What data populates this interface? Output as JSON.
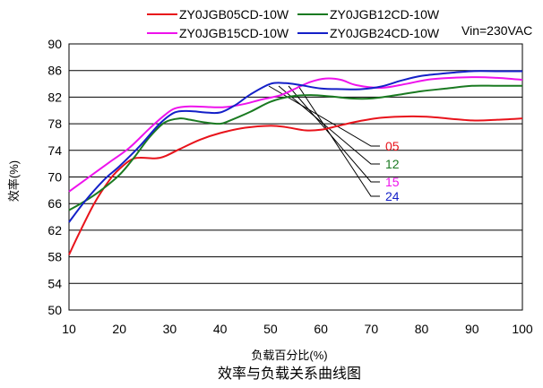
{
  "chart_data": {
    "type": "line",
    "caption": "效率与负载关系曲线图",
    "xlabel": "负载百分比(%)",
    "ylabel": "效率(%)",
    "xlim": [
      10,
      100
    ],
    "ylim": [
      50,
      90
    ],
    "xticks": [
      10,
      20,
      30,
      40,
      50,
      60,
      70,
      80,
      90,
      100
    ],
    "yticks": [
      50,
      54,
      58,
      62,
      66,
      70,
      74,
      78,
      82,
      86,
      90
    ],
    "grid": "horizontal",
    "legend_position": "top",
    "annotation": "Vin=230VAC",
    "series": [
      {
        "name": "ZY0JGB05CD-10W",
        "tag": "05",
        "color": "#e8131b",
        "x": [
          10,
          12,
          15,
          18,
          20,
          23,
          27,
          29,
          32,
          36,
          40,
          45,
          50,
          53,
          57,
          60,
          63,
          67,
          72,
          78,
          82,
          90,
          95,
          100
        ],
        "y": [
          58.3,
          61.5,
          66.0,
          69.5,
          71.2,
          72.8,
          72.8,
          73.1,
          74.2,
          75.6,
          76.6,
          77.4,
          77.7,
          77.5,
          77.0,
          77.1,
          77.6,
          78.3,
          78.9,
          79.1,
          79.0,
          78.5,
          78.6,
          78.8
        ]
      },
      {
        "name": "ZY0JGB12CD-10W",
        "tag": "12",
        "color": "#1a7a21",
        "x": [
          10,
          13,
          16,
          20,
          23,
          26,
          29,
          32,
          34,
          37,
          40,
          42,
          46,
          50,
          54,
          58,
          62,
          66,
          70,
          75,
          80,
          85,
          90,
          95,
          100
        ],
        "y": [
          65.0,
          66.3,
          67.8,
          70.3,
          73.0,
          76.0,
          78.2,
          78.8,
          78.6,
          78.2,
          78.0,
          78.5,
          79.8,
          81.3,
          82.1,
          82.3,
          82.1,
          81.8,
          81.8,
          82.3,
          82.9,
          83.3,
          83.7,
          83.7,
          83.7
        ]
      },
      {
        "name": "ZY0JGB15CD-10W",
        "tag": "15",
        "color": "#ee12ec",
        "x": [
          10,
          14,
          18,
          22,
          26,
          29,
          31,
          34,
          38,
          41,
          45,
          48,
          52,
          55,
          58,
          61,
          64,
          67,
          72,
          77,
          82,
          90,
          95,
          100
        ],
        "y": [
          67.8,
          70.0,
          72.2,
          74.4,
          77.3,
          79.3,
          80.3,
          80.6,
          80.5,
          80.5,
          81.0,
          81.6,
          82.3,
          83.3,
          84.3,
          84.8,
          84.6,
          83.8,
          83.4,
          84.0,
          84.7,
          85.0,
          84.9,
          84.6
        ]
      },
      {
        "name": "ZY0JGB24CD-10W",
        "tag": "24",
        "color": "#1420c8",
        "x": [
          10,
          13,
          17,
          20,
          24,
          28,
          31,
          34,
          37,
          40,
          43,
          46,
          50,
          53,
          56,
          60,
          64,
          68,
          72,
          76,
          80,
          85,
          90,
          95,
          100
        ],
        "y": [
          63.2,
          66.2,
          69.6,
          71.6,
          74.6,
          78.0,
          79.7,
          79.9,
          79.7,
          79.7,
          80.8,
          82.4,
          84.0,
          84.1,
          83.8,
          83.3,
          83.2,
          83.2,
          83.6,
          84.5,
          85.2,
          85.6,
          85.9,
          85.9,
          85.9
        ]
      }
    ]
  }
}
